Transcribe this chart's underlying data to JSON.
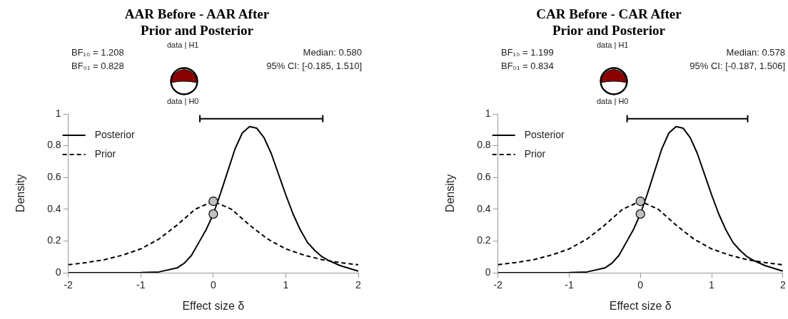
{
  "chart_data": [
    {
      "type": "line",
      "title": "AAR Before - AAR After\nPrior and Posterior",
      "xlabel": "Effect size δ",
      "ylabel": "Density",
      "annotations": [
        "BF₁₀ = 1.208",
        "BF₀₁ = 0.828",
        "Median: 0.580",
        "95% CI: [-0.185, 1.510]",
        "data | H1",
        "data | H0"
      ],
      "xlim": [
        -2,
        2
      ],
      "xticks": [
        -2,
        -1,
        0,
        1,
        2
      ],
      "ylim": [
        0,
        1
      ],
      "yticks": [
        0,
        0.2,
        0.4,
        0.6,
        0.8,
        1
      ],
      "grid": false,
      "legend": "top left",
      "series": [
        {
          "name": "Posterior",
          "color": "#000000",
          "line_style": "solid",
          "x": [
            -2,
            -1.5,
            -1,
            -0.75,
            -0.5,
            -0.4,
            -0.3,
            -0.2,
            -0.1,
            0,
            0.1,
            0.2,
            0.3,
            0.4,
            0.5,
            0.6,
            0.7,
            0.8,
            0.9,
            1,
            1.1,
            1.2,
            1.3,
            1.4,
            1.5,
            1.6,
            1.75,
            2
          ],
          "values": [
            0,
            0,
            0.001,
            0.005,
            0.03,
            0.06,
            0.11,
            0.19,
            0.27,
            0.37,
            0.5,
            0.64,
            0.78,
            0.88,
            0.92,
            0.91,
            0.85,
            0.75,
            0.62,
            0.49,
            0.37,
            0.27,
            0.19,
            0.14,
            0.1,
            0.075,
            0.045,
            0.01
          ]
        },
        {
          "name": "Prior",
          "color": "#000000",
          "line_style": "dashed",
          "x": [
            -2,
            -1.75,
            -1.5,
            -1.25,
            -1,
            -0.75,
            -0.5,
            -0.25,
            0,
            0.25,
            0.5,
            0.75,
            1,
            1.25,
            1.5,
            1.75,
            2
          ],
          "values": [
            0.05,
            0.064,
            0.082,
            0.111,
            0.15,
            0.212,
            0.3,
            0.4,
            0.45,
            0.4,
            0.3,
            0.212,
            0.15,
            0.111,
            0.082,
            0.064,
            0.05
          ]
        },
        {
          "type": "scatter",
          "color": "#c0c0c0",
          "marker": "circle",
          "x": [
            0,
            0
          ],
          "values": [
            0.45,
            0.37
          ]
        },
        {
          "type": "line",
          "color": "#000000",
          "line_style": "solid",
          "x": [
            -0.185,
            1.51
          ],
          "values": [
            0.97,
            0.97
          ]
        }
      ]
    },
    {
      "type": "line",
      "title": "CAR Before - CAR After\nPrior and Posterior",
      "xlabel": "Effect size δ",
      "ylabel": "Density",
      "annotations": [
        "BF₁₀ = 1.199",
        "BF₀₁ = 0.834",
        "Median: 0.578",
        "95% CI: [-0.187, 1.506]",
        "data | H1",
        "data | H0"
      ],
      "xlim": [
        -2,
        2
      ],
      "xticks": [
        -2,
        -1,
        0,
        1,
        2
      ],
      "ylim": [
        0,
        1
      ],
      "yticks": [
        0,
        0.2,
        0.4,
        0.6,
        0.8,
        1
      ],
      "grid": false,
      "legend": "top left",
      "series": [
        {
          "name": "Posterior",
          "color": "#000000",
          "line_style": "solid",
          "x": [
            -2,
            -1.5,
            -1,
            -0.75,
            -0.5,
            -0.4,
            -0.3,
            -0.2,
            -0.1,
            0,
            0.1,
            0.2,
            0.3,
            0.4,
            0.5,
            0.6,
            0.7,
            0.8,
            0.9,
            1,
            1.1,
            1.2,
            1.3,
            1.4,
            1.5,
            1.6,
            1.75,
            2
          ],
          "values": [
            0,
            0,
            0.001,
            0.005,
            0.03,
            0.06,
            0.11,
            0.19,
            0.27,
            0.37,
            0.5,
            0.64,
            0.78,
            0.88,
            0.92,
            0.91,
            0.85,
            0.75,
            0.62,
            0.49,
            0.37,
            0.27,
            0.19,
            0.14,
            0.1,
            0.075,
            0.045,
            0.01
          ]
        },
        {
          "name": "Prior",
          "color": "#000000",
          "line_style": "dashed",
          "x": [
            -2,
            -1.75,
            -1.5,
            -1.25,
            -1,
            -0.75,
            -0.5,
            -0.25,
            0,
            0.25,
            0.5,
            0.75,
            1,
            1.25,
            1.5,
            1.75,
            2
          ],
          "values": [
            0.05,
            0.064,
            0.082,
            0.111,
            0.15,
            0.212,
            0.3,
            0.4,
            0.45,
            0.4,
            0.3,
            0.212,
            0.15,
            0.111,
            0.082,
            0.064,
            0.05
          ]
        },
        {
          "type": "scatter",
          "color": "#c0c0c0",
          "marker": "circle",
          "x": [
            0,
            0
          ],
          "values": [
            0.45,
            0.37
          ]
        },
        {
          "type": "line",
          "color": "#000000",
          "line_style": "solid",
          "x": [
            -0.187,
            1.506
          ],
          "values": [
            0.97,
            0.97
          ]
        }
      ]
    }
  ]
}
